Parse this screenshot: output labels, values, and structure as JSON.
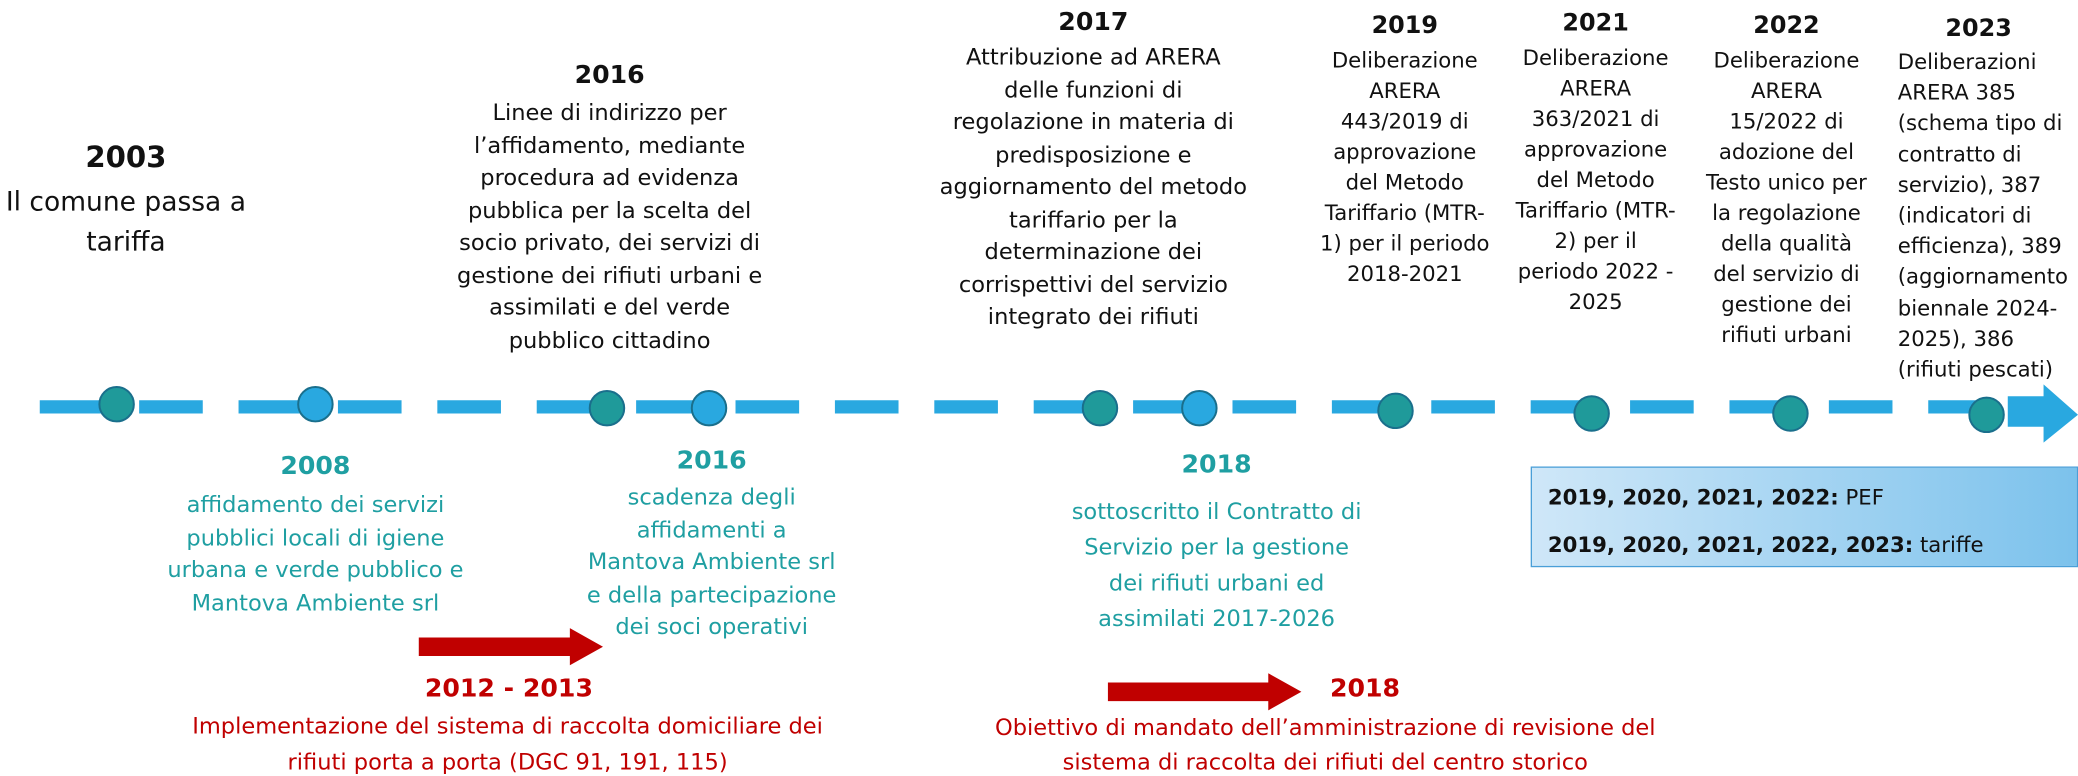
{
  "top_events": [
    {
      "year": "2003",
      "lines": [
        "Il comune passa a",
        "tariffa"
      ]
    },
    {
      "year": "2016",
      "lines": [
        "Linee di indirizzo per",
        "l’affidamento, mediante",
        "procedura ad evidenza",
        "pubblica per la scelta del",
        "socio privato, dei servizi di",
        "gestione dei rifiuti urbani e",
        "assimilati e del verde",
        "pubblico cittadino"
      ]
    },
    {
      "year": "2017",
      "lines": [
        "Attribuzione ad ARERA",
        "delle funzioni di",
        "regolazione in materia di",
        "predisposizione e",
        "aggiornamento del metodo",
        "tariffario per la",
        "determinazione dei",
        "corrispettivi del servizio",
        "integrato dei rifiuti"
      ]
    },
    {
      "year": "2019",
      "lines": [
        "Deliberazione",
        "ARERA",
        "443/2019 di",
        "approvazione",
        "del Metodo",
        "Tariffario (MTR-",
        "1) per il periodo",
        "2018-2021"
      ]
    },
    {
      "year": "2021",
      "lines": [
        "Deliberazione",
        "ARERA",
        "363/2021 di",
        "approvazione",
        "del Metodo",
        "Tariffario (MTR-",
        "2) per il",
        "periodo 2022 -",
        "2025"
      ]
    },
    {
      "year": "2022",
      "lines": [
        "Deliberazione",
        "ARERA",
        "15/2022 di",
        "adozione del",
        "Testo unico per",
        "la regolazione",
        "della qualità",
        "del servizio di",
        "gestione dei",
        "rifiuti urbani"
      ]
    },
    {
      "year": "2023",
      "lines": [
        "Deliberazioni",
        "ARERA 385",
        "(schema tipo di",
        "contratto di",
        "servizio), 387",
        "(indicatori di",
        "efficienza), 389",
        "(aggiornamento",
        "biennale 2024-",
        "2025), 386",
        "(rifiuti pescati)"
      ]
    }
  ],
  "bottom_events": [
    {
      "year": "2008",
      "lines": [
        "affidamento dei servizi",
        "pubblici locali di igiene",
        "urbana e verde pubblico e",
        "Mantova Ambiente srl"
      ]
    },
    {
      "year": "2016",
      "lines": [
        "scadenza degli",
        "affidamenti a",
        "Mantova Ambiente srl",
        "e della partecipazione",
        "dei soci operativi"
      ]
    },
    {
      "year": "2018",
      "lines": [
        "sottoscritto il Contratto di",
        "Servizio per la gestione",
        "dei rifiuti urbani ed",
        "assimilati 2017-2026"
      ]
    }
  ],
  "red_events": [
    {
      "year": "2012 - 2013",
      "lines": [
        "Implementazione del sistema di raccolta domiciliare dei",
        "rifiuti porta a porta (DGC 91, 191, 115)"
      ]
    },
    {
      "year": "2018",
      "lines": [
        "Obiettivo di mandato dell’amministrazione di revisione del",
        "sistema di raccolta dei rifiuti del centro storico"
      ]
    }
  ],
  "box": {
    "rows": [
      {
        "years": "2019, 2020, 2021, 2022:",
        "label": "PEF"
      },
      {
        "years": "2019, 2020, 2021, 2022, 2023:",
        "label": "tariffe"
      }
    ]
  }
}
